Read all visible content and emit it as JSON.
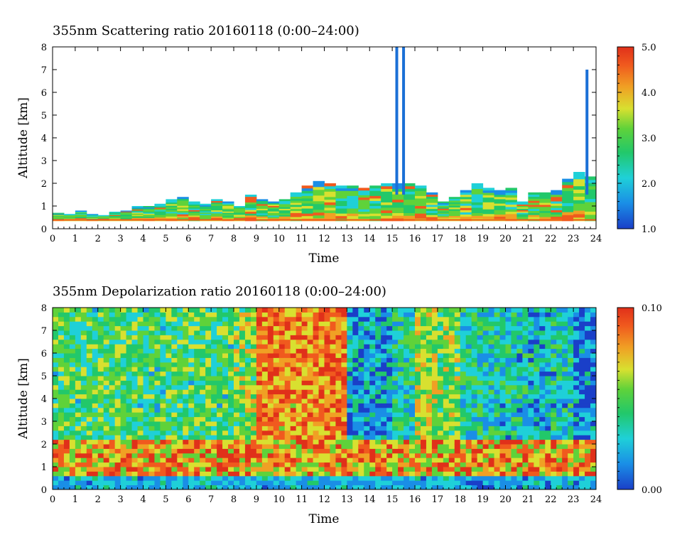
{
  "chart_data": [
    {
      "type": "heatmap",
      "title": "355nm Scattering ratio  20160118 (0:00–24:00)",
      "xlabel": "Time",
      "ylabel": "Altitude [km]",
      "xlim": [
        0,
        24
      ],
      "ylim": [
        0,
        8
      ],
      "x_ticks": [
        "0",
        "1",
        "2",
        "3",
        "4",
        "5",
        "6",
        "7",
        "8",
        "9",
        "10",
        "11",
        "12",
        "13",
        "14",
        "15",
        "16",
        "17",
        "18",
        "19",
        "20",
        "21",
        "22",
        "23",
        "24"
      ],
      "y_ticks": [
        "0",
        "1",
        "2",
        "3",
        "4",
        "5",
        "6",
        "7",
        "8"
      ],
      "colorbar": {
        "min": 1.0,
        "max": 5.0,
        "ticks": [
          "1.0",
          "2.0",
          "3.0",
          "4.0",
          "5.0"
        ]
      },
      "colors": [
        "#1a3fc8",
        "#1a8ee6",
        "#1fd0d8",
        "#22c86a",
        "#5fd23a",
        "#d8e030",
        "#f0a024",
        "#f05a1e",
        "#e0301a"
      ],
      "grid": false,
      "layer_top_km": [
        0.7,
        0.65,
        0.8,
        0.65,
        0.6,
        0.75,
        0.8,
        1.0,
        1.0,
        1.1,
        1.3,
        1.4,
        1.2,
        1.1,
        1.3,
        1.2,
        1.0,
        1.5,
        1.3,
        1.2,
        1.3,
        1.6,
        1.9,
        2.1,
        2.0,
        1.9,
        1.9,
        1.8,
        1.9,
        2.0,
        2.0,
        2.0,
        1.9,
        1.6,
        1.2,
        1.4,
        1.7,
        2.0,
        1.8,
        1.7,
        1.8,
        1.2,
        1.6,
        1.6,
        1.7,
        2.2,
        2.5,
        2.3
      ],
      "spikes": [
        {
          "time": 15.2,
          "top_km": 8.0
        },
        {
          "time": 15.5,
          "top_km": 8.0
        },
        {
          "time": 23.6,
          "top_km": 7.0
        }
      ]
    },
    {
      "type": "heatmap",
      "title": "355nm Depolarization ratio  20160118 (0:00–24:00)",
      "xlabel": "Time",
      "ylabel": "Altitude [km]",
      "xlim": [
        0,
        24
      ],
      "ylim": [
        0,
        8
      ],
      "x_ticks": [
        "0",
        "1",
        "2",
        "3",
        "4",
        "5",
        "6",
        "7",
        "8",
        "9",
        "10",
        "11",
        "12",
        "13",
        "14",
        "15",
        "16",
        "17",
        "18",
        "19",
        "20",
        "21",
        "22",
        "23",
        "24"
      ],
      "y_ticks": [
        "0",
        "1",
        "2",
        "3",
        "4",
        "5",
        "6",
        "7",
        "8"
      ],
      "colorbar": {
        "min": 0.0,
        "max": 0.1,
        "ticks": [
          "0.00",
          "0.10"
        ]
      },
      "colors": [
        "#1a3fc8",
        "#1a8ee6",
        "#1fd0d8",
        "#22c86a",
        "#5fd23a",
        "#d8e030",
        "#f0a024",
        "#f05a1e",
        "#e0301a"
      ],
      "grid": false,
      "upper_level_by_hour": [
        0.42,
        0.42,
        0.45,
        0.42,
        0.4,
        0.42,
        0.42,
        0.4,
        0.5,
        0.8,
        0.75,
        0.75,
        0.8,
        0.2,
        0.2,
        0.35,
        0.55,
        0.5,
        0.35,
        0.3,
        0.3,
        0.25,
        0.3,
        0.15
      ]
    }
  ]
}
